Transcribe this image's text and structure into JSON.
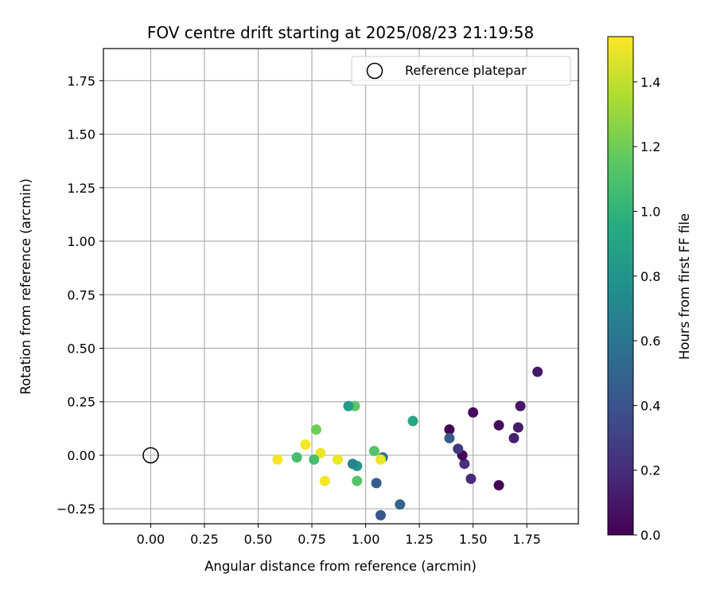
{
  "chart_data": {
    "type": "scatter",
    "title": "FOV centre drift starting at 2025/08/23 21:19:58",
    "xlabel": "Angular distance from reference (arcmin)",
    "ylabel": "Rotation from reference (arcmin)",
    "xlim": [
      -0.22,
      1.99
    ],
    "ylim": [
      -0.32,
      1.9
    ],
    "xticks": [
      0.0,
      0.25,
      0.5,
      0.75,
      1.0,
      1.25,
      1.5,
      1.75
    ],
    "xtick_labels": [
      "0.00",
      "0.25",
      "0.50",
      "0.75",
      "1.00",
      "1.25",
      "1.50",
      "1.75"
    ],
    "yticks": [
      -0.25,
      0.0,
      0.25,
      0.5,
      0.75,
      1.0,
      1.25,
      1.5,
      1.75
    ],
    "ytick_labels": [
      "−0.25",
      "0.00",
      "0.25",
      "0.50",
      "0.75",
      "1.00",
      "1.25",
      "1.50",
      "1.75"
    ],
    "grid": true,
    "legend": {
      "placement": "upper right",
      "entries": [
        "Reference platepar"
      ]
    },
    "reference_point": {
      "x": 0.0,
      "y": 0.0
    },
    "colorbar": {
      "label": "Hours from first FF file",
      "colormap": "viridis",
      "range": [
        0.0,
        1.54
      ],
      "ticks": [
        0.0,
        0.2,
        0.4,
        0.6,
        0.8,
        1.0,
        1.2,
        1.4
      ],
      "tick_labels": [
        "0.0",
        "0.2",
        "0.4",
        "0.6",
        "0.8",
        "1.0",
        "1.2",
        "1.4"
      ]
    },
    "points": [
      {
        "x": 1.8,
        "y": 0.39,
        "c": 0.1
      },
      {
        "x": 1.5,
        "y": 0.2,
        "c": 0.05
      },
      {
        "x": 1.72,
        "y": 0.23,
        "c": 0.1
      },
      {
        "x": 1.62,
        "y": 0.14,
        "c": 0.05
      },
      {
        "x": 1.71,
        "y": 0.13,
        "c": 0.12
      },
      {
        "x": 1.69,
        "y": 0.08,
        "c": 0.14
      },
      {
        "x": 1.39,
        "y": 0.12,
        "c": 0.0
      },
      {
        "x": 1.62,
        "y": -0.14,
        "c": 0.02
      },
      {
        "x": 1.49,
        "y": -0.11,
        "c": 0.2
      },
      {
        "x": 1.46,
        "y": -0.04,
        "c": 0.22
      },
      {
        "x": 1.45,
        "y": 0.0,
        "c": 0.03
      },
      {
        "x": 1.43,
        "y": 0.03,
        "c": 0.25
      },
      {
        "x": 1.39,
        "y": 0.08,
        "c": 0.45
      },
      {
        "x": 1.22,
        "y": 0.16,
        "c": 0.92
      },
      {
        "x": 1.16,
        "y": -0.23,
        "c": 0.5
      },
      {
        "x": 1.07,
        "y": -0.28,
        "c": 0.42
      },
      {
        "x": 1.05,
        "y": -0.13,
        "c": 0.45
      },
      {
        "x": 1.08,
        "y": -0.01,
        "c": 0.6
      },
      {
        "x": 1.07,
        "y": -0.02,
        "c": 1.5
      },
      {
        "x": 1.04,
        "y": 0.02,
        "c": 1.12
      },
      {
        "x": 0.96,
        "y": -0.05,
        "c": 0.82
      },
      {
        "x": 0.94,
        "y": -0.04,
        "c": 0.7
      },
      {
        "x": 0.95,
        "y": 0.23,
        "c": 1.15
      },
      {
        "x": 0.92,
        "y": 0.23,
        "c": 0.85
      },
      {
        "x": 0.96,
        "y": -0.12,
        "c": 1.13
      },
      {
        "x": 0.87,
        "y": -0.02,
        "c": 1.5
      },
      {
        "x": 0.81,
        "y": -0.12,
        "c": 1.52
      },
      {
        "x": 0.79,
        "y": 0.01,
        "c": 1.5
      },
      {
        "x": 0.76,
        "y": -0.02,
        "c": 1.08
      },
      {
        "x": 0.77,
        "y": 0.12,
        "c": 1.2
      },
      {
        "x": 0.72,
        "y": 0.05,
        "c": 1.52
      },
      {
        "x": 0.68,
        "y": -0.01,
        "c": 1.08
      },
      {
        "x": 0.59,
        "y": -0.02,
        "c": 1.52
      }
    ]
  }
}
